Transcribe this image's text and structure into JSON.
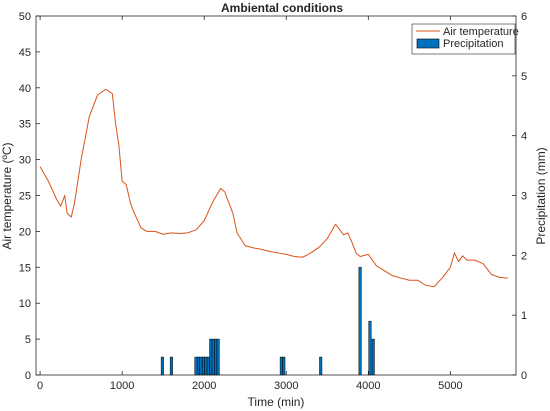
{
  "chart_data": {
    "type": "line+bar",
    "title": "Ambiental conditions",
    "xlabel": "Time (min)",
    "ylabel_left": "Air temperature (ºC)",
    "ylabel_right": "Precipitation (mm)",
    "xlim": [
      -50,
      5800
    ],
    "ylim_left": [
      0,
      50
    ],
    "ylim_right": [
      0,
      6
    ],
    "x_ticks": [
      0,
      1000,
      2000,
      3000,
      4000,
      5000
    ],
    "y_ticks_left": [
      0,
      5,
      10,
      15,
      20,
      25,
      30,
      35,
      40,
      45,
      50
    ],
    "y_ticks_right": [
      0,
      1,
      2,
      3,
      4,
      5,
      6
    ],
    "grid": false,
    "legend_position": "top-right",
    "legend": [
      "Air temperature",
      "Precipitation"
    ],
    "colors": {
      "temperature": "#D95319",
      "precipitation": "#0072BD",
      "bar_edge": "#000000"
    },
    "series": [
      {
        "name": "Air temperature",
        "type": "line",
        "axis": "left",
        "x": [
          0,
          100,
          200,
          250,
          300,
          330,
          380,
          420,
          500,
          600,
          700,
          800,
          880,
          920,
          960,
          1000,
          1050,
          1100,
          1130,
          1170,
          1230,
          1300,
          1400,
          1500,
          1600,
          1700,
          1800,
          1900,
          2000,
          2100,
          2200,
          2250,
          2300,
          2350,
          2400,
          2500,
          2600,
          2700,
          2800,
          2900,
          3000,
          3100,
          3200,
          3300,
          3400,
          3500,
          3600,
          3700,
          3750,
          3800,
          3850,
          3900,
          4000,
          4100,
          4200,
          4300,
          4400,
          4500,
          4600,
          4700,
          4800,
          4900,
          5000,
          5050,
          5100,
          5150,
          5200,
          5300,
          5400,
          5500,
          5600,
          5700
        ],
        "values": [
          29,
          27,
          24.5,
          23.5,
          25,
          22.5,
          22,
          24,
          30,
          36,
          39,
          39.8,
          39.2,
          35,
          32,
          27,
          26.5,
          24,
          23,
          22,
          20.5,
          20,
          20,
          19.6,
          19.8,
          19.7,
          19.8,
          20.2,
          21.5,
          24,
          26,
          25.5,
          24,
          22.5,
          19.8,
          18,
          17.7,
          17.5,
          17.2,
          17,
          16.8,
          16.5,
          16.4,
          17,
          17.8,
          19,
          21,
          19.5,
          19.8,
          18.5,
          17,
          16.5,
          16.8,
          15.2,
          14.5,
          13.8,
          13.5,
          13.2,
          13.2,
          12.5,
          12.3,
          13.5,
          15,
          17,
          15.8,
          16.6,
          16,
          16,
          15.5,
          14,
          13.6,
          13.5
        ]
      },
      {
        "name": "Precipitation",
        "type": "bar",
        "axis": "right",
        "bar_width": 30,
        "x": [
          1490,
          1600,
          1900,
          1930,
          1960,
          1990,
          2020,
          2050,
          2080,
          2110,
          2140,
          2170,
          2940,
          2970,
          3420,
          3900,
          4020,
          4060
        ],
        "values": [
          0.3,
          0.3,
          0.3,
          0.3,
          0.3,
          0.3,
          0.3,
          0.3,
          0.6,
          0.6,
          0.6,
          0.6,
          0.3,
          0.3,
          0.3,
          1.8,
          0.9,
          0.6
        ]
      }
    ]
  }
}
